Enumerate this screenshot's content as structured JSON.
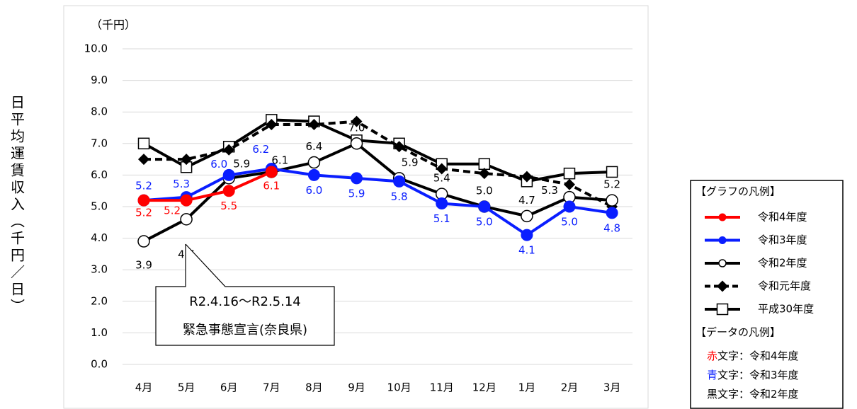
{
  "chart_data": {
    "type": "line",
    "y_label": "日平均運賃収入（千円／日）",
    "unit_label": "（千円）",
    "categories": [
      "4月",
      "5月",
      "6月",
      "7月",
      "8月",
      "9月",
      "10月",
      "11月",
      "12月",
      "1月",
      "2月",
      "3月"
    ],
    "ylim": [
      0,
      10
    ],
    "yticks": [
      {
        "value": 0,
        "label": "0.0"
      },
      {
        "value": 1,
        "label": "1.0"
      },
      {
        "value": 2,
        "label": "2.0"
      },
      {
        "value": 3,
        "label": "3.0"
      },
      {
        "value": 4,
        "label": "4.0"
      },
      {
        "value": 5,
        "label": "5.0"
      },
      {
        "value": 6,
        "label": "6.0"
      },
      {
        "value": 7,
        "label": "7.0"
      },
      {
        "value": 8,
        "label": "8.0"
      },
      {
        "value": 9,
        "label": "9.0"
      },
      {
        "value": 10,
        "label": "10.0"
      }
    ],
    "grid": true,
    "series": [
      {
        "name": "令和4年度",
        "color": "#ff0000",
        "marker": "circle",
        "dashed": false,
        "values": [
          5.2,
          5.2,
          5.5,
          6.1,
          null,
          null,
          null,
          null,
          null,
          null,
          null,
          null
        ],
        "value_labels": [
          "5.2",
          "5.2",
          "5.5",
          "6.1",
          null,
          null,
          null,
          null,
          null,
          null,
          null,
          null
        ]
      },
      {
        "name": "令和3年度",
        "color": "#0a1eff",
        "marker": "circle",
        "dashed": false,
        "values": [
          5.2,
          5.3,
          6.0,
          6.2,
          6.0,
          5.9,
          5.8,
          5.1,
          5.0,
          4.1,
          5.0,
          4.8
        ],
        "value_labels": [
          "5.2",
          "5.3",
          "6.0",
          "6.2",
          "6.0",
          "5.9",
          "5.8",
          "5.1",
          "5.0",
          "4.1",
          "5.0",
          "4.8"
        ]
      },
      {
        "name": "令和2年度",
        "color": "#000000",
        "marker": "open-circle",
        "dashed": false,
        "values": [
          3.9,
          4.6,
          5.9,
          6.1,
          6.4,
          7.0,
          5.9,
          5.4,
          5.0,
          4.7,
          5.3,
          5.2
        ],
        "value_labels": [
          "3.9",
          "4.6",
          "5.9",
          "6.1",
          "6.4",
          "7.0",
          "5.9",
          "5.4",
          "5.0",
          "4.7",
          "5.3",
          "5.2"
        ]
      },
      {
        "name": "令和元年度",
        "color": "#000000",
        "marker": "diamond",
        "dashed": true,
        "values": [
          6.5,
          6.5,
          6.8,
          7.6,
          7.6,
          7.7,
          6.9,
          6.2,
          6.05,
          5.95,
          5.7,
          5.0
        ]
      },
      {
        "name": "平成30年度",
        "color": "#000000",
        "marker": "open-square",
        "dashed": false,
        "values": [
          7.0,
          6.25,
          6.9,
          7.75,
          7.7,
          7.1,
          7.0,
          6.35,
          6.35,
          5.8,
          6.05,
          6.1
        ]
      }
    ],
    "annotation": [
      "R2.4.16～R2.5.14",
      "緊急事態宣言(奈良県)"
    ],
    "legend_title": "【グラフの凡例】",
    "data_legend_title": "【データの凡例】",
    "data_legend": [
      {
        "color_word": "赤",
        "text": "文字：令和4年度",
        "color": "#ff0000"
      },
      {
        "color_word": "青",
        "text": "文字：令和3年度",
        "color": "#0a1eff"
      },
      {
        "color_word": "黒",
        "text": "文字：令和2年度",
        "color": "#000000"
      }
    ]
  }
}
